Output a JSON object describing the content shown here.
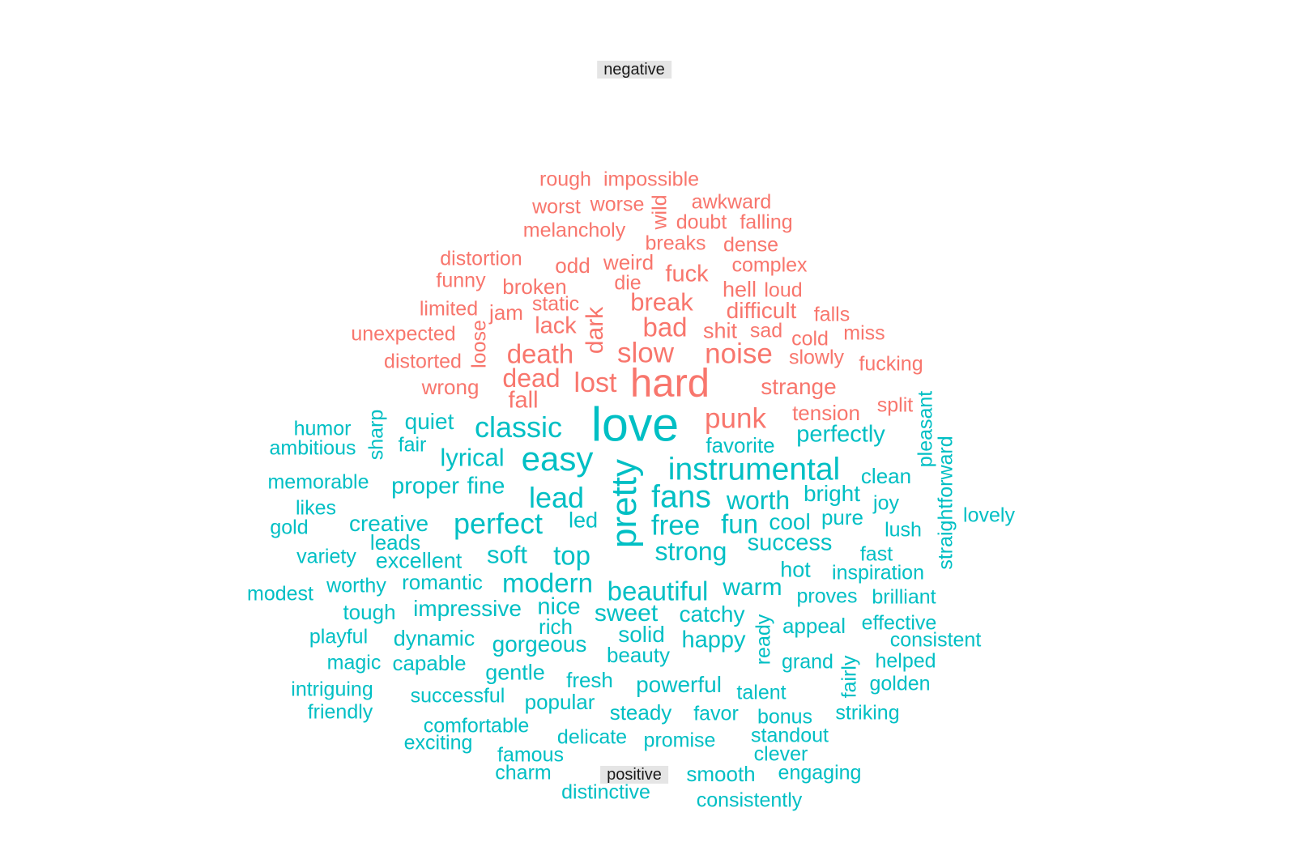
{
  "colors": {
    "negative": "#F8766D",
    "positive": "#00BFC4"
  },
  "groups": [
    {
      "key": "negative",
      "label": "negative"
    },
    {
      "key": "positive",
      "label": "positive"
    }
  ],
  "words": [
    {
      "text": "rough",
      "group": "negative"
    },
    {
      "text": "impossible",
      "group": "negative"
    },
    {
      "text": "worst",
      "group": "negative"
    },
    {
      "text": "worse",
      "group": "negative"
    },
    {
      "text": "wild",
      "group": "negative"
    },
    {
      "text": "awkward",
      "group": "negative"
    },
    {
      "text": "doubt",
      "group": "negative"
    },
    {
      "text": "falling",
      "group": "negative"
    },
    {
      "text": "melancholy",
      "group": "negative"
    },
    {
      "text": "breaks",
      "group": "negative"
    },
    {
      "text": "dense",
      "group": "negative"
    },
    {
      "text": "distortion",
      "group": "negative"
    },
    {
      "text": "odd",
      "group": "negative"
    },
    {
      "text": "weird",
      "group": "negative"
    },
    {
      "text": "complex",
      "group": "negative"
    },
    {
      "text": "fuck",
      "group": "negative"
    },
    {
      "text": "funny",
      "group": "negative"
    },
    {
      "text": "broken",
      "group": "negative"
    },
    {
      "text": "die",
      "group": "negative"
    },
    {
      "text": "hell",
      "group": "negative"
    },
    {
      "text": "loud",
      "group": "negative"
    },
    {
      "text": "limited",
      "group": "negative"
    },
    {
      "text": "jam",
      "group": "negative"
    },
    {
      "text": "static",
      "group": "negative"
    },
    {
      "text": "dark",
      "group": "negative"
    },
    {
      "text": "break",
      "group": "negative"
    },
    {
      "text": "difficult",
      "group": "negative"
    },
    {
      "text": "falls",
      "group": "negative"
    },
    {
      "text": "unexpected",
      "group": "negative"
    },
    {
      "text": "loose",
      "group": "negative"
    },
    {
      "text": "lack",
      "group": "negative"
    },
    {
      "text": "bad",
      "group": "negative"
    },
    {
      "text": "shit",
      "group": "negative"
    },
    {
      "text": "sad",
      "group": "negative"
    },
    {
      "text": "cold",
      "group": "negative"
    },
    {
      "text": "miss",
      "group": "negative"
    },
    {
      "text": "distorted",
      "group": "negative"
    },
    {
      "text": "death",
      "group": "negative"
    },
    {
      "text": "slow",
      "group": "negative"
    },
    {
      "text": "noise",
      "group": "negative"
    },
    {
      "text": "slowly",
      "group": "negative"
    },
    {
      "text": "fucking",
      "group": "negative"
    },
    {
      "text": "wrong",
      "group": "negative"
    },
    {
      "text": "dead",
      "group": "negative"
    },
    {
      "text": "lost",
      "group": "negative"
    },
    {
      "text": "hard",
      "group": "negative"
    },
    {
      "text": "strange",
      "group": "negative"
    },
    {
      "text": "fall",
      "group": "negative"
    },
    {
      "text": "split",
      "group": "negative"
    },
    {
      "text": "tension",
      "group": "negative"
    },
    {
      "text": "punk",
      "group": "negative"
    },
    {
      "text": "love",
      "group": "positive"
    },
    {
      "text": "humor",
      "group": "positive"
    },
    {
      "text": "sharp",
      "group": "positive"
    },
    {
      "text": "quiet",
      "group": "positive"
    },
    {
      "text": "classic",
      "group": "positive"
    },
    {
      "text": "pleasant",
      "group": "positive"
    },
    {
      "text": "perfectly",
      "group": "positive"
    },
    {
      "text": "ambitious",
      "group": "positive"
    },
    {
      "text": "fair",
      "group": "positive"
    },
    {
      "text": "favorite",
      "group": "positive"
    },
    {
      "text": "straightforward",
      "group": "positive"
    },
    {
      "text": "lyrical",
      "group": "positive"
    },
    {
      "text": "easy",
      "group": "positive"
    },
    {
      "text": "pretty",
      "group": "positive"
    },
    {
      "text": "instrumental",
      "group": "positive"
    },
    {
      "text": "clean",
      "group": "positive"
    },
    {
      "text": "memorable",
      "group": "positive"
    },
    {
      "text": "proper",
      "group": "positive"
    },
    {
      "text": "fine",
      "group": "positive"
    },
    {
      "text": "bright",
      "group": "positive"
    },
    {
      "text": "lead",
      "group": "positive"
    },
    {
      "text": "fans",
      "group": "positive"
    },
    {
      "text": "worth",
      "group": "positive"
    },
    {
      "text": "joy",
      "group": "positive"
    },
    {
      "text": "likes",
      "group": "positive"
    },
    {
      "text": "lovely",
      "group": "positive"
    },
    {
      "text": "creative",
      "group": "positive"
    },
    {
      "text": "led",
      "group": "positive"
    },
    {
      "text": "cool",
      "group": "positive"
    },
    {
      "text": "pure",
      "group": "positive"
    },
    {
      "text": "gold",
      "group": "positive"
    },
    {
      "text": "perfect",
      "group": "positive"
    },
    {
      "text": "free",
      "group": "positive"
    },
    {
      "text": "fun",
      "group": "positive"
    },
    {
      "text": "lush",
      "group": "positive"
    },
    {
      "text": "leads",
      "group": "positive"
    },
    {
      "text": "success",
      "group": "positive"
    },
    {
      "text": "variety",
      "group": "positive"
    },
    {
      "text": "soft",
      "group": "positive"
    },
    {
      "text": "top",
      "group": "positive"
    },
    {
      "text": "strong",
      "group": "positive"
    },
    {
      "text": "fast",
      "group": "positive"
    },
    {
      "text": "excellent",
      "group": "positive"
    },
    {
      "text": "hot",
      "group": "positive"
    },
    {
      "text": "inspiration",
      "group": "positive"
    },
    {
      "text": "romantic",
      "group": "positive"
    },
    {
      "text": "modern",
      "group": "positive"
    },
    {
      "text": "worthy",
      "group": "positive"
    },
    {
      "text": "beautiful",
      "group": "positive"
    },
    {
      "text": "warm",
      "group": "positive"
    },
    {
      "text": "modest",
      "group": "positive"
    },
    {
      "text": "proves",
      "group": "positive"
    },
    {
      "text": "brilliant",
      "group": "positive"
    },
    {
      "text": "tough",
      "group": "positive"
    },
    {
      "text": "impressive",
      "group": "positive"
    },
    {
      "text": "nice",
      "group": "positive"
    },
    {
      "text": "sweet",
      "group": "positive"
    },
    {
      "text": "catchy",
      "group": "positive"
    },
    {
      "text": "ready",
      "group": "positive"
    },
    {
      "text": "rich",
      "group": "positive"
    },
    {
      "text": "appeal",
      "group": "positive"
    },
    {
      "text": "effective",
      "group": "positive"
    },
    {
      "text": "playful",
      "group": "positive"
    },
    {
      "text": "dynamic",
      "group": "positive"
    },
    {
      "text": "solid",
      "group": "positive"
    },
    {
      "text": "happy",
      "group": "positive"
    },
    {
      "text": "consistent",
      "group": "positive"
    },
    {
      "text": "gorgeous",
      "group": "positive"
    },
    {
      "text": "beauty",
      "group": "positive"
    },
    {
      "text": "magic",
      "group": "positive"
    },
    {
      "text": "capable",
      "group": "positive"
    },
    {
      "text": "grand",
      "group": "positive"
    },
    {
      "text": "helped",
      "group": "positive"
    },
    {
      "text": "gentle",
      "group": "positive"
    },
    {
      "text": "fairly",
      "group": "positive"
    },
    {
      "text": "fresh",
      "group": "positive"
    },
    {
      "text": "powerful",
      "group": "positive"
    },
    {
      "text": "intriguing",
      "group": "positive"
    },
    {
      "text": "golden",
      "group": "positive"
    },
    {
      "text": "talent",
      "group": "positive"
    },
    {
      "text": "successful",
      "group": "positive"
    },
    {
      "text": "popular",
      "group": "positive"
    },
    {
      "text": "friendly",
      "group": "positive"
    },
    {
      "text": "steady",
      "group": "positive"
    },
    {
      "text": "favor",
      "group": "positive"
    },
    {
      "text": "bonus",
      "group": "positive"
    },
    {
      "text": "striking",
      "group": "positive"
    },
    {
      "text": "comfortable",
      "group": "positive"
    },
    {
      "text": "standout",
      "group": "positive"
    },
    {
      "text": "exciting",
      "group": "positive"
    },
    {
      "text": "delicate",
      "group": "positive"
    },
    {
      "text": "promise",
      "group": "positive"
    },
    {
      "text": "famous",
      "group": "positive"
    },
    {
      "text": "clever",
      "group": "positive"
    },
    {
      "text": "charm",
      "group": "positive"
    },
    {
      "text": "smooth",
      "group": "positive"
    },
    {
      "text": "engaging",
      "group": "positive"
    },
    {
      "text": "distinctive",
      "group": "positive"
    },
    {
      "text": "consistently",
      "group": "positive"
    }
  ]
}
